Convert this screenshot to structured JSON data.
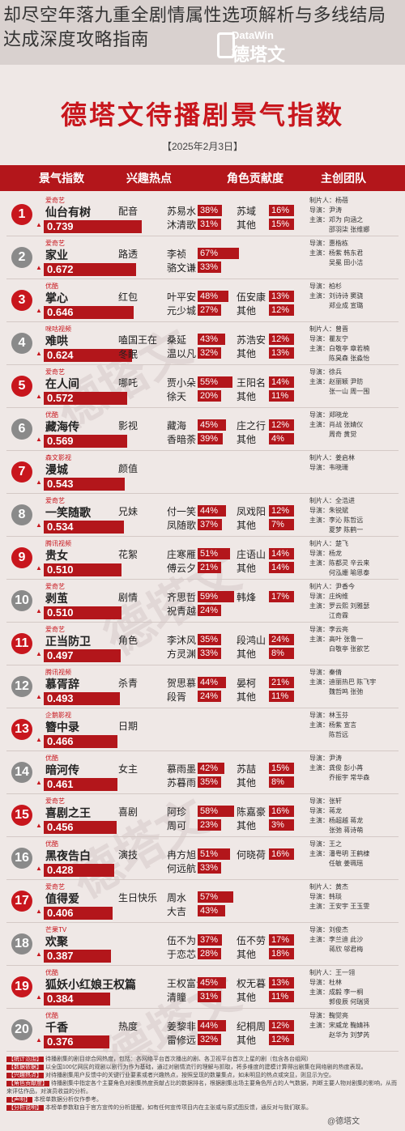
{
  "caption": "却尽空年落九重全剧情属性选项解析与多线结局达成深度攻略指南",
  "logo": {
    "en": "DataWin",
    "cn": "德塔文"
  },
  "title": "德塔文待播剧景气指数",
  "date": "【2025年2月3日】",
  "headers": [
    "景气指数",
    "兴趣热点",
    "角色贡献度",
    "主创团队"
  ],
  "colors": {
    "accent": "#b3161b",
    "title": "#c8161d"
  },
  "rows": [
    {
      "rank": "1",
      "platform": "爱奇艺",
      "name": "仙台有树",
      "score": "0.739",
      "hot": [
        "配音"
      ],
      "actors": [
        [
          "苏易水",
          "38%"
        ],
        [
          "沐清歌",
          "31%"
        ]
      ],
      "actors2": [
        [
          "苏域",
          "16%"
        ],
        [
          "其他",
          "15%"
        ]
      ],
      "team": [
        "制片人：杨蓓",
        "导演：尹涛",
        "主演：邓为 向涵之",
        "　　　邵羽柒 张维娜"
      ]
    },
    {
      "rank": "2",
      "platform": "爱奇艺",
      "name": "家业",
      "score": "0.672",
      "hot": [
        "路透"
      ],
      "actors": [
        [
          "李祯",
          "67%"
        ],
        [
          "骆文谦",
          "33%"
        ]
      ],
      "actors2": [],
      "team": [
        "导演：惠楷栋",
        "主演：杨紫 韩东君",
        "　　　吴冕 田小洁"
      ]
    },
    {
      "rank": "3",
      "platform": "优酷",
      "name": "掌心",
      "score": "0.646",
      "hot": [
        "红包"
      ],
      "actors": [
        [
          "叶平安",
          "48%"
        ],
        [
          "元少城",
          "27%"
        ]
      ],
      "actors2": [
        [
          "伍安康",
          "13%"
        ],
        [
          "其他",
          "12%"
        ]
      ],
      "team": [
        "导演：柏杉",
        "主演：刘诗诗 窦骁",
        "　　　郑业成 宣璐"
      ]
    },
    {
      "rank": "4",
      "platform": "咪咕视频",
      "name": "难哄",
      "score": "0.624",
      "hot": [
        "嗑国王在",
        "冬眠"
      ],
      "actors": [
        [
          "桑延",
          "43%"
        ],
        [
          "温以凡",
          "32%"
        ]
      ],
      "actors2": [
        [
          "苏浩安",
          "12%"
        ],
        [
          "其他",
          "13%"
        ]
      ],
      "team": [
        "制片人：曾晋",
        "导演：瞿友宁",
        "主演：白敬亭 章若楠",
        "　　　陈昊森 张淼怡"
      ]
    },
    {
      "rank": "5",
      "platform": "爱奇艺",
      "name": "在人间",
      "score": "0.572",
      "hot": [
        "哪吒"
      ],
      "actors": [
        [
          "贾小朵",
          "55%"
        ],
        [
          "徐天",
          "20%"
        ]
      ],
      "actors2": [
        [
          "王阳名",
          "14%"
        ],
        [
          "其他",
          "11%"
        ]
      ],
      "team": [
        "导演：徐兵",
        "主演：赵丽颖 尹昉",
        "　　　张一山 周一围"
      ]
    },
    {
      "rank": "6",
      "platform": "优酷",
      "name": "藏海传",
      "score": "0.569",
      "hot": [
        "影视"
      ],
      "actors": [
        [
          "藏海",
          "45%"
        ],
        [
          "香暗荼",
          "39%"
        ]
      ],
      "actors2": [
        [
          "庄之行",
          "12%"
        ],
        [
          "其他",
          "4%"
        ]
      ],
      "team": [
        "导演：郑晓龙",
        "主演：肖战 张婧仪",
        "　　　周奇 黄觉"
      ]
    },
    {
      "rank": "7",
      "platform": "森文影视",
      "name": "漫城",
      "score": "0.543",
      "hot": [
        "颜值"
      ],
      "actors": [],
      "actors2": [],
      "team": [
        "制片人：姜启林",
        "导演：韦晓珊"
      ]
    },
    {
      "rank": "8",
      "platform": "爱奇艺",
      "name": "一笑随歌",
      "score": "0.534",
      "hot": [
        "兄妹"
      ],
      "actors": [
        [
          "付一笑",
          "44%"
        ],
        [
          "凤随歌",
          "37%"
        ]
      ],
      "actors2": [
        [
          "凤戏阳",
          "12%"
        ],
        [
          "其他",
          "7%"
        ]
      ],
      "team": [
        "制片人：全浩进",
        "导演：朱锐斌",
        "主演：李沁 陈哲远",
        "　　　夏梦 陈鹤一"
      ]
    },
    {
      "rank": "9",
      "platform": "腾讯视频",
      "name": "贵女",
      "score": "0.510",
      "hot": [
        "花絮"
      ],
      "actors": [
        [
          "庄寒雁",
          "51%"
        ],
        [
          "傅云夕",
          "21%"
        ]
      ],
      "actors2": [
        [
          "庄语山",
          "14%"
        ],
        [
          "其他",
          "14%"
        ]
      ],
      "team": [
        "制片人：楚飞",
        "导演：杨龙",
        "主演：陈都灵 辛云来",
        "　　　何泓姗 喻恩泰"
      ]
    },
    {
      "rank": "10",
      "platform": "爱奇艺",
      "name": "剥茧",
      "score": "0.510",
      "hot": [
        "剧情"
      ],
      "actors": [
        [
          "齐思哲",
          "59%"
        ],
        [
          "祝青越",
          "24%"
        ]
      ],
      "actors2": [
        [
          "韩烽",
          "17%"
        ]
      ],
      "team": [
        "制片人：尹香今",
        "导演：庄绚维",
        "主演：罗云熙 刘雅瑟",
        "　　　江奇霖"
      ]
    },
    {
      "rank": "11",
      "platform": "爱奇艺",
      "name": "正当防卫",
      "score": "0.497",
      "hot": [
        "角色"
      ],
      "actors": [
        [
          "李沐风",
          "35%"
        ],
        [
          "方灵渊",
          "33%"
        ]
      ],
      "actors2": [
        [
          "段鸿山",
          "24%"
        ],
        [
          "其他",
          "8%"
        ]
      ],
      "team": [
        "导演：李云亮",
        "主演：高叶 张鲁一",
        "　　　白敬亭 张歆艺"
      ]
    },
    {
      "rank": "12",
      "platform": "腾讯视频",
      "name": "慕胥辞",
      "score": "0.493",
      "hot": [
        "杀青"
      ],
      "actors": [
        [
          "贺思慕",
          "44%"
        ],
        [
          "段胥",
          "24%"
        ]
      ],
      "actors2": [
        [
          "晏柯",
          "21%"
        ],
        [
          "其他",
          "11%"
        ]
      ],
      "team": [
        "导演：秦倩",
        "主演：迪丽热巴 陈飞宇",
        "　　　魏哲鸣 张弛"
      ]
    },
    {
      "rank": "13",
      "platform": "企鹅影视",
      "name": "簪中录",
      "score": "0.466",
      "hot": [
        "日期"
      ],
      "actors": [],
      "actors2": [],
      "team": [
        "导演：林玉芬",
        "主演：杨紫 宣言",
        "　　　陈哲远"
      ]
    },
    {
      "rank": "14",
      "platform": "优酷",
      "name": "暗河传",
      "score": "0.461",
      "hot": [
        "女主"
      ],
      "actors": [
        [
          "慕雨墨",
          "42%"
        ],
        [
          "苏暮雨",
          "35%"
        ]
      ],
      "actors2": [
        [
          "苏喆",
          "15%"
        ],
        [
          "其他",
          "8%"
        ]
      ],
      "team": [
        "导演：尹涛",
        "主演：龚俊 彭小苒",
        "　　　乔振宇 常华森"
      ]
    },
    {
      "rank": "15",
      "platform": "爱奇艺",
      "name": "喜剧之王",
      "score": "0.456",
      "hot": [
        "喜剧"
      ],
      "actors": [
        [
          "阿珍",
          "58%"
        ],
        [
          "周可",
          "23%"
        ]
      ],
      "actors2": [
        [
          "陈嘉豪",
          "16%"
        ],
        [
          "其他",
          "3%"
        ]
      ],
      "team": [
        "导演：张轩",
        "导演：蒋龙",
        "主演：杨超越 蒋龙",
        "　　　张弛 蒋诗萌"
      ]
    },
    {
      "rank": "16",
      "platform": "优酷",
      "name": "黑夜告白",
      "score": "0.428",
      "hot": [
        "演技"
      ],
      "actors": [
        [
          "冉方旭",
          "51%"
        ],
        [
          "何远航",
          "33%"
        ]
      ],
      "actors2": [
        [
          "何晓荷",
          "16%"
        ]
      ],
      "team": [
        "导演：王之",
        "主演：潘粤明 王鹤棣",
        "　　　任敏 姜珮瑶"
      ]
    },
    {
      "rank": "17",
      "platform": "爱奇艺",
      "name": "值得爱",
      "score": "0.406",
      "hot": [
        "生日快乐"
      ],
      "actors": [
        [
          "周水",
          "57%"
        ],
        [
          "大吉",
          "43%"
        ]
      ],
      "actors2": [],
      "team": [
        "制片人：黄杰",
        "导演：韩琰",
        "主演：王安宇 王玉雯"
      ]
    },
    {
      "rank": "18",
      "platform": "芒果TV",
      "name": "欢聚",
      "score": "0.387",
      "hot": [],
      "actors": [
        [
          "伍不为",
          "37%"
        ],
        [
          "于恋芯",
          "28%"
        ]
      ],
      "actors2": [
        [
          "伍不劳",
          "17%"
        ],
        [
          "其他",
          "18%"
        ]
      ],
      "team": [
        "导演：刘俊杰",
        "主演：李兰迪 此沙",
        "　　　蒋欣 邬君梅"
      ]
    },
    {
      "rank": "19",
      "platform": "优酷",
      "name": "狐妖小红娘王权篇",
      "score": "0.384",
      "hot": [],
      "actors": [
        [
          "王权富贵",
          "45%"
        ],
        [
          "清瞳",
          "31%"
        ]
      ],
      "actors2": [
        [
          "权无暮",
          "13%"
        ],
        [
          "其他",
          "11%"
        ]
      ],
      "team": [
        "制片人：王一翎",
        "导演：杜林",
        "主演：成毅 李一桐",
        "　　　郭俊辰 何瑞贤"
      ]
    },
    {
      "rank": "20",
      "platform": "优酷",
      "name": "千香",
      "score": "0.376",
      "hot": [
        "热度"
      ],
      "actors": [
        [
          "姜黎非",
          "44%"
        ],
        [
          "雷修远",
          "32%"
        ]
      ],
      "actors2": [
        [
          "纪桐周",
          "12%"
        ],
        [
          "其他",
          "12%"
        ]
      ],
      "team": [
        "导演：鞠觉亮",
        "主演：宋威龙 鞠婧祎",
        "　　　赵华为 刘梦芮"
      ]
    }
  ],
  "footer": [
    {
      "key": "【统计范围】",
      "text": "待播剧集的剧目综合网热度，包括：各网络平台首次播出的剧、各卫视平台首次上星的剧（包含各台组网）"
    },
    {
      "key": "【数据依据】",
      "text": "以全国100亿网民的观剧以剧行为作为基础，通过对剧情流行的理解与抓取，将多维度的建模计算得出剧集在网络剧的热度表现。"
    },
    {
      "key": "【兴趣热点】",
      "text": "对待播剧集用户反馈中的关键行业要素或者兴趣热点，按照呈现的数量集点，如未明显的热点或突显，则显示为空。"
    },
    {
      "key": "【角色贡献度】",
      "text": "待播剧集中指定各个主要角色对剧集热度贡献占比的数据排名，根据剧集出场主要角色所占的人气数据，判断主要人物对剧集的影响，从而来评估作品，对演员收益的分析。"
    },
    {
      "key": "【声明】",
      "text": "本榜单数据分析仅作参考。"
    },
    {
      "key": "【分析说明】",
      "text": "本榜单参数取自于官方宣传的分析提醒，如有任何宣传项目内在主张或与原式图反馈，通反对与我们联系。"
    }
  ],
  "weibo": "@德塔文"
}
